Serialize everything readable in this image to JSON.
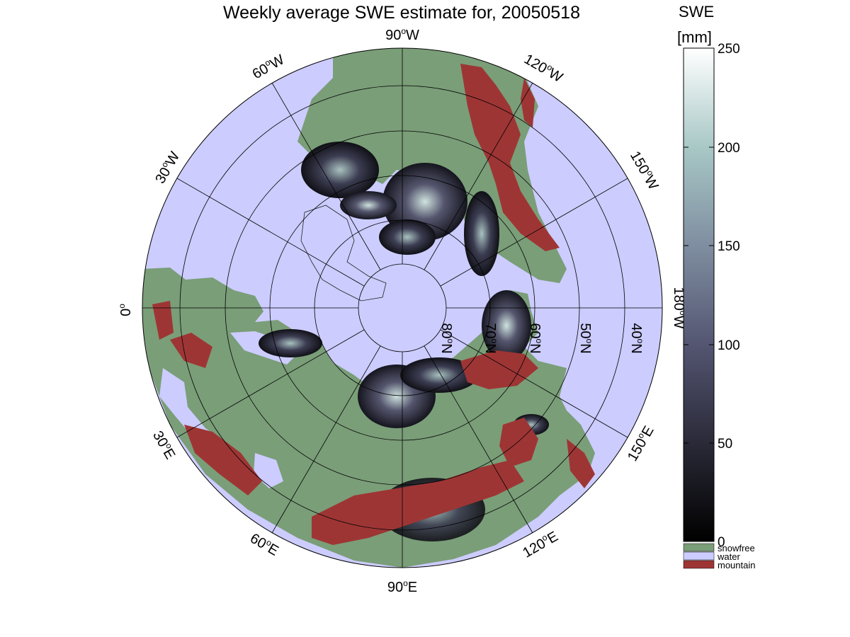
{
  "title": "Weekly average SWE estimate for, 20050518",
  "colorbar": {
    "label_line1": "SWE",
    "label_line2": "[mm]",
    "ticks": [
      "0",
      "50",
      "100",
      "150",
      "200",
      "250"
    ],
    "range": [
      0,
      250
    ]
  },
  "legend": [
    {
      "label": "snowfree",
      "color": "#7a9e78"
    },
    {
      "label": "water",
      "color": "#ccccff"
    },
    {
      "label": "mountain",
      "color": "#9e3535"
    }
  ],
  "longitude_labels": [
    {
      "deg": "90",
      "dir": "W"
    },
    {
      "deg": "120",
      "dir": "W"
    },
    {
      "deg": "150",
      "dir": "W"
    },
    {
      "deg": "180",
      "dir": "W"
    },
    {
      "deg": "150",
      "dir": "E"
    },
    {
      "deg": "120",
      "dir": "E"
    },
    {
      "deg": "90",
      "dir": "E"
    },
    {
      "deg": "60",
      "dir": "E"
    },
    {
      "deg": "30",
      "dir": "E"
    },
    {
      "deg": "0",
      "dir": ""
    },
    {
      "deg": "30",
      "dir": "W"
    },
    {
      "deg": "60",
      "dir": "W"
    }
  ],
  "latitude_labels": [
    {
      "deg": "80",
      "dir": "N"
    },
    {
      "deg": "70",
      "dir": "N"
    },
    {
      "deg": "60",
      "dir": "N"
    },
    {
      "deg": "50",
      "dir": "N"
    },
    {
      "deg": "40",
      "dir": "N"
    }
  ],
  "colors": {
    "water": "#ccccff",
    "land": "#7a9e78",
    "mountain": "#9e3535",
    "snow_low": "#0c0c12",
    "snow_high": "#f5fbfa"
  }
}
